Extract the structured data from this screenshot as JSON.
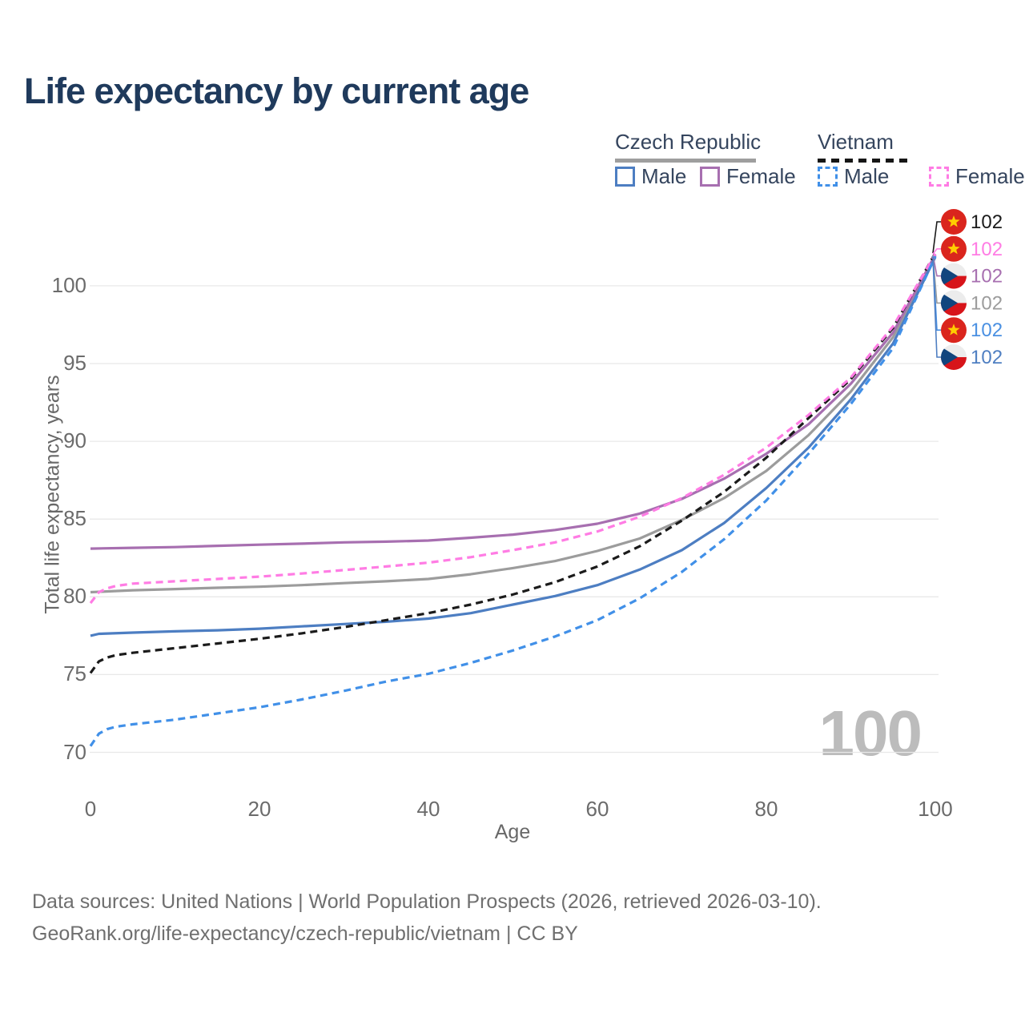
{
  "title": "Life expectancy by current age",
  "legend": {
    "groups": [
      {
        "label": "Czech Republic",
        "style": "solid"
      },
      {
        "label": "Vietnam",
        "style": "dashed"
      }
    ],
    "items": [
      {
        "label": "Male",
        "group": "Czech Republic",
        "color": "#4d7ec2",
        "dash": false
      },
      {
        "label": "Female",
        "group": "Czech Republic",
        "color": "#a76fb0",
        "dash": false
      },
      {
        "label": "Male",
        "group": "Vietnam",
        "color": "#4190e8",
        "dash": true
      },
      {
        "label": "Female",
        "group": "Vietnam",
        "color": "#ff7ce4",
        "dash": true
      }
    ]
  },
  "colors": {
    "title_text": "#1f3a5c",
    "legend_text": "#35455e",
    "axis_text": "#6b6b6b",
    "gridline": "#e8e8e8",
    "watermark": "#bcbcbc",
    "vietnam_flag_red": "#da251d",
    "vietnam_flag_star": "#ffce00",
    "czech_flag_blue": "#11457e",
    "czech_flag_red": "#d7141a"
  },
  "chart_data": {
    "type": "line",
    "title": "Life expectancy by current age",
    "xlabel": "Age",
    "ylabel": "Total life expectancy, years",
    "x_ticks": [
      0,
      20,
      40,
      60,
      80,
      100
    ],
    "y_ticks": [
      70,
      75,
      80,
      85,
      90,
      95,
      100
    ],
    "xlim": [
      0,
      100
    ],
    "ylim": [
      70,
      102.5
    ],
    "grid": "horizontal-only",
    "legend_position": "top-right",
    "watermark": "100",
    "series": [
      {
        "id": "cz-total",
        "name": "Czech Republic Both sexes",
        "country": "Czech Republic",
        "sex": "Both",
        "color": "#9c9c9c",
        "dash": false,
        "points": [
          [
            0,
            80.3
          ],
          [
            5,
            80.42
          ],
          [
            10,
            80.5
          ],
          [
            15,
            80.58
          ],
          [
            20,
            80.65
          ],
          [
            25,
            80.75
          ],
          [
            30,
            80.88
          ],
          [
            35,
            81.0
          ],
          [
            40,
            81.15
          ],
          [
            45,
            81.45
          ],
          [
            50,
            81.85
          ],
          [
            55,
            82.3
          ],
          [
            60,
            82.95
          ],
          [
            65,
            83.75
          ],
          [
            70,
            84.95
          ],
          [
            75,
            86.35
          ],
          [
            80,
            88.1
          ],
          [
            85,
            90.4
          ],
          [
            90,
            93.2
          ],
          [
            95,
            96.7
          ],
          [
            100,
            101.95
          ]
        ]
      },
      {
        "id": "cz-female",
        "name": "Czech Republic Female",
        "country": "Czech Republic",
        "sex": "Female",
        "color": "#a76fb0",
        "dash": false,
        "points": [
          [
            0,
            83.1
          ],
          [
            5,
            83.15
          ],
          [
            10,
            83.2
          ],
          [
            15,
            83.28
          ],
          [
            20,
            83.35
          ],
          [
            25,
            83.42
          ],
          [
            30,
            83.5
          ],
          [
            35,
            83.55
          ],
          [
            40,
            83.62
          ],
          [
            45,
            83.8
          ],
          [
            50,
            84.0
          ],
          [
            55,
            84.3
          ],
          [
            60,
            84.7
          ],
          [
            65,
            85.35
          ],
          [
            70,
            86.3
          ],
          [
            75,
            87.6
          ],
          [
            80,
            89.2
          ],
          [
            85,
            91.1
          ],
          [
            90,
            93.7
          ],
          [
            95,
            97.0
          ],
          [
            100,
            102.0
          ]
        ]
      },
      {
        "id": "cz-male",
        "name": "Czech Republic Male",
        "country": "Czech Republic",
        "sex": "Male",
        "color": "#4d7ec2",
        "dash": false,
        "points": [
          [
            0,
            77.5
          ],
          [
            1,
            77.62
          ],
          [
            5,
            77.7
          ],
          [
            10,
            77.78
          ],
          [
            15,
            77.85
          ],
          [
            20,
            77.95
          ],
          [
            25,
            78.1
          ],
          [
            30,
            78.25
          ],
          [
            35,
            78.4
          ],
          [
            40,
            78.6
          ],
          [
            45,
            78.95
          ],
          [
            50,
            79.5
          ],
          [
            55,
            80.05
          ],
          [
            60,
            80.75
          ],
          [
            65,
            81.75
          ],
          [
            70,
            83.0
          ],
          [
            75,
            84.75
          ],
          [
            80,
            87.0
          ],
          [
            85,
            89.6
          ],
          [
            90,
            92.7
          ],
          [
            95,
            96.3
          ],
          [
            100,
            101.85
          ]
        ]
      },
      {
        "id": "vn-total",
        "name": "Vietnam Both sexes",
        "country": "Vietnam",
        "sex": "Both",
        "color": "#1b1b1b",
        "dash": true,
        "points": [
          [
            0,
            75.1
          ],
          [
            1,
            75.85
          ],
          [
            2,
            76.1
          ],
          [
            3,
            76.25
          ],
          [
            5,
            76.4
          ],
          [
            10,
            76.7
          ],
          [
            15,
            77.0
          ],
          [
            20,
            77.3
          ],
          [
            25,
            77.65
          ],
          [
            30,
            78.05
          ],
          [
            35,
            78.5
          ],
          [
            40,
            78.95
          ],
          [
            45,
            79.5
          ],
          [
            50,
            80.15
          ],
          [
            55,
            80.95
          ],
          [
            60,
            81.95
          ],
          [
            65,
            83.25
          ],
          [
            70,
            84.9
          ],
          [
            75,
            86.75
          ],
          [
            80,
            88.95
          ],
          [
            85,
            91.5
          ],
          [
            90,
            94.0
          ],
          [
            95,
            97.3
          ],
          [
            100,
            102.1
          ]
        ]
      },
      {
        "id": "vn-female",
        "name": "Vietnam Female",
        "country": "Vietnam",
        "sex": "Female",
        "color": "#ff7ce4",
        "dash": true,
        "points": [
          [
            0,
            79.6
          ],
          [
            1,
            80.3
          ],
          [
            2,
            80.55
          ],
          [
            3,
            80.7
          ],
          [
            5,
            80.85
          ],
          [
            10,
            81.0
          ],
          [
            15,
            81.15
          ],
          [
            20,
            81.3
          ],
          [
            25,
            81.5
          ],
          [
            30,
            81.72
          ],
          [
            35,
            81.95
          ],
          [
            40,
            82.2
          ],
          [
            45,
            82.55
          ],
          [
            50,
            83.0
          ],
          [
            55,
            83.5
          ],
          [
            60,
            84.2
          ],
          [
            65,
            85.15
          ],
          [
            70,
            86.35
          ],
          [
            75,
            87.85
          ],
          [
            80,
            89.6
          ],
          [
            85,
            91.7
          ],
          [
            90,
            94.1
          ],
          [
            95,
            97.4
          ],
          [
            100,
            102.05
          ]
        ]
      },
      {
        "id": "vn-male",
        "name": "Vietnam Male",
        "country": "Vietnam",
        "sex": "Male",
        "color": "#4190e8",
        "dash": true,
        "points": [
          [
            0,
            70.4
          ],
          [
            1,
            71.2
          ],
          [
            2,
            71.5
          ],
          [
            3,
            71.65
          ],
          [
            5,
            71.8
          ],
          [
            10,
            72.1
          ],
          [
            15,
            72.5
          ],
          [
            20,
            72.9
          ],
          [
            25,
            73.4
          ],
          [
            30,
            73.95
          ],
          [
            35,
            74.55
          ],
          [
            40,
            75.05
          ],
          [
            45,
            75.75
          ],
          [
            50,
            76.55
          ],
          [
            55,
            77.45
          ],
          [
            60,
            78.5
          ],
          [
            65,
            79.9
          ],
          [
            70,
            81.6
          ],
          [
            75,
            83.7
          ],
          [
            80,
            86.2
          ],
          [
            85,
            89.2
          ],
          [
            90,
            92.4
          ],
          [
            95,
            96.0
          ],
          [
            100,
            101.9
          ]
        ]
      }
    ],
    "end_labels": [
      {
        "series": "vn-total",
        "flag": "vietnam",
        "value": "102",
        "color": "#1b1b1b"
      },
      {
        "series": "vn-female",
        "flag": "vietnam",
        "value": "102",
        "color": "#ff7ce4"
      },
      {
        "series": "cz-female",
        "flag": "czech",
        "value": "102",
        "color": "#a76fb0"
      },
      {
        "series": "cz-total",
        "flag": "czech",
        "value": "102",
        "color": "#9c9c9c"
      },
      {
        "series": "vn-male",
        "flag": "vietnam",
        "value": "102",
        "color": "#4a90e2"
      },
      {
        "series": "cz-male",
        "flag": "czech",
        "value": "102",
        "color": "#4f7fc2"
      }
    ]
  },
  "footer": {
    "line1": "Data sources: United Nations | World Population Prospects (2026, retrieved 2026-03-10).",
    "line2": "GeoRank.org/life-expectancy/czech-republic/vietnam | CC BY"
  }
}
